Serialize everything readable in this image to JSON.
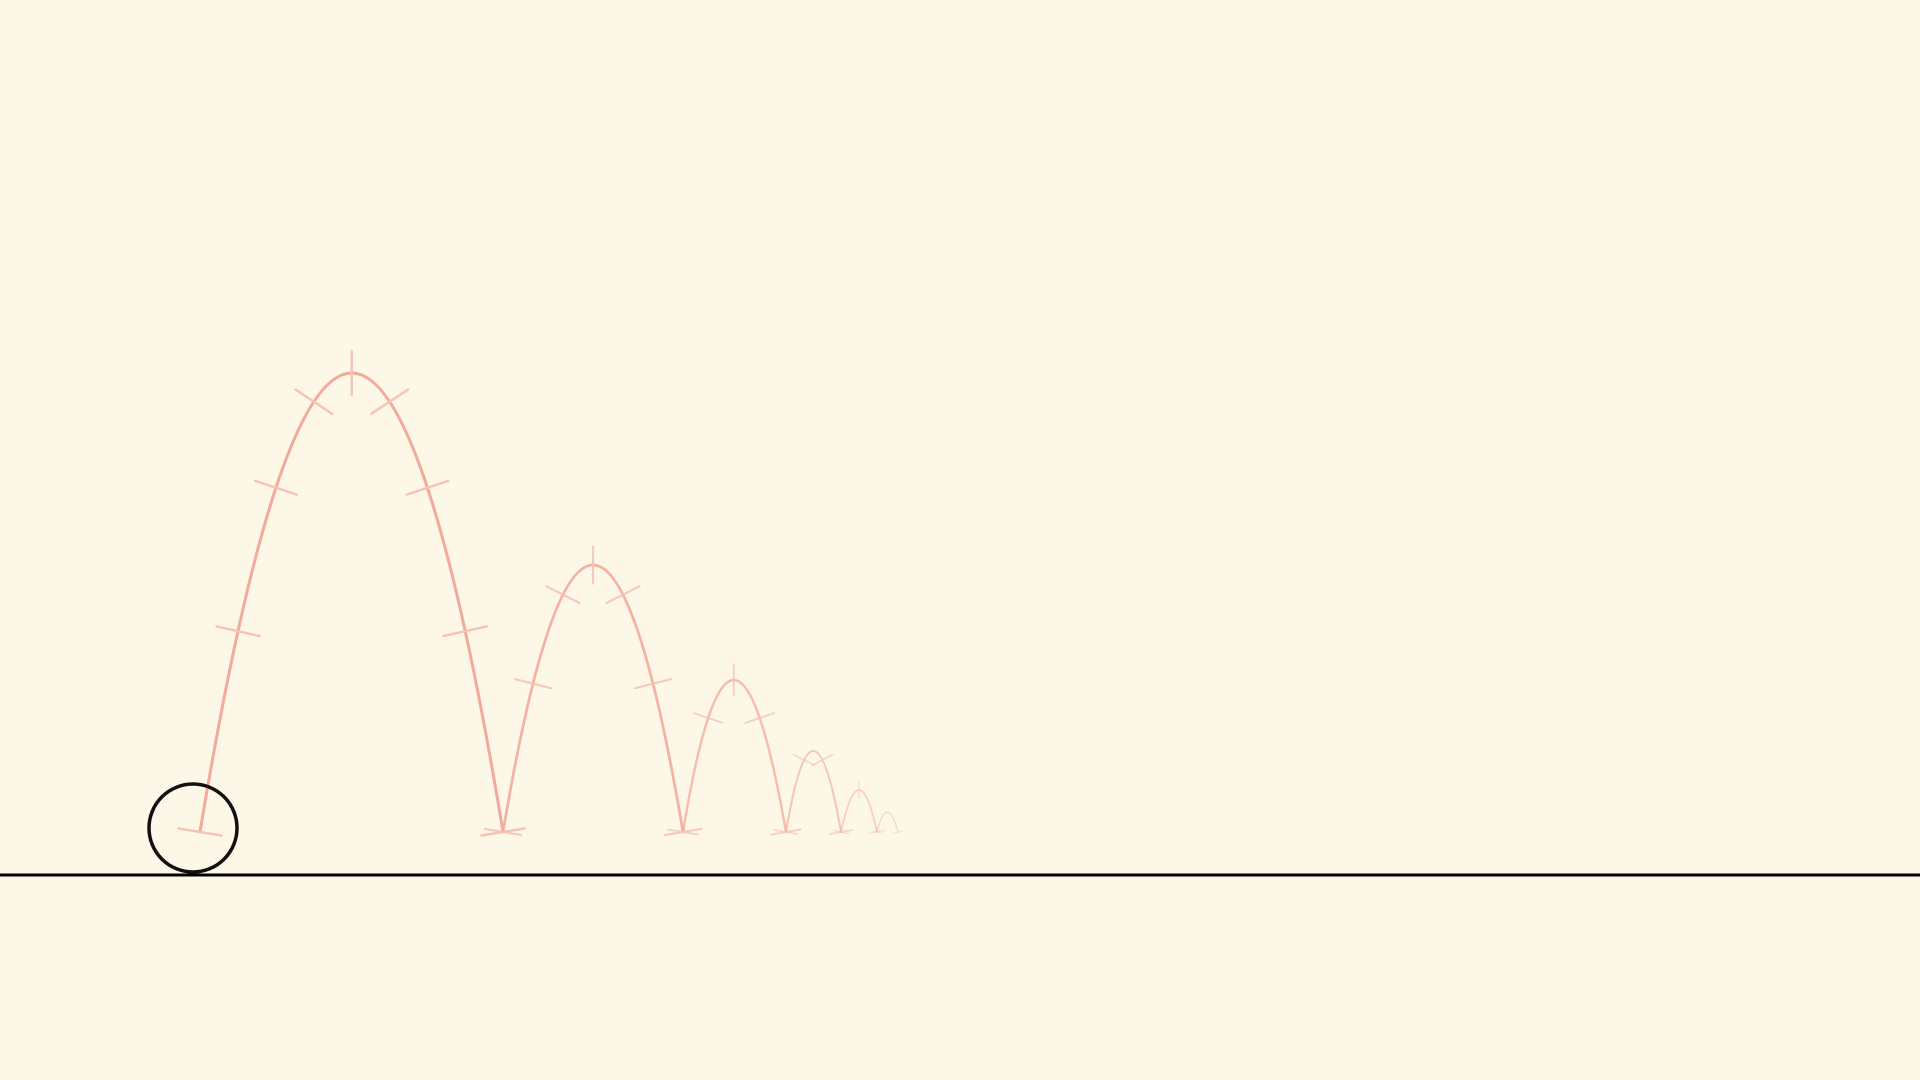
{
  "colors": {
    "background": "#fcf7e6",
    "ground": "#000000",
    "ball_stroke": "#111111",
    "arc": "#f3a99b",
    "arc_faded": "#f6c3b6"
  },
  "scene": {
    "subject": "bouncing ball",
    "bounce_count": 6,
    "ticks_per_arc": [
      8,
      6,
      4,
      3,
      2,
      1
    ],
    "decay_per_bounce": 0.5
  }
}
